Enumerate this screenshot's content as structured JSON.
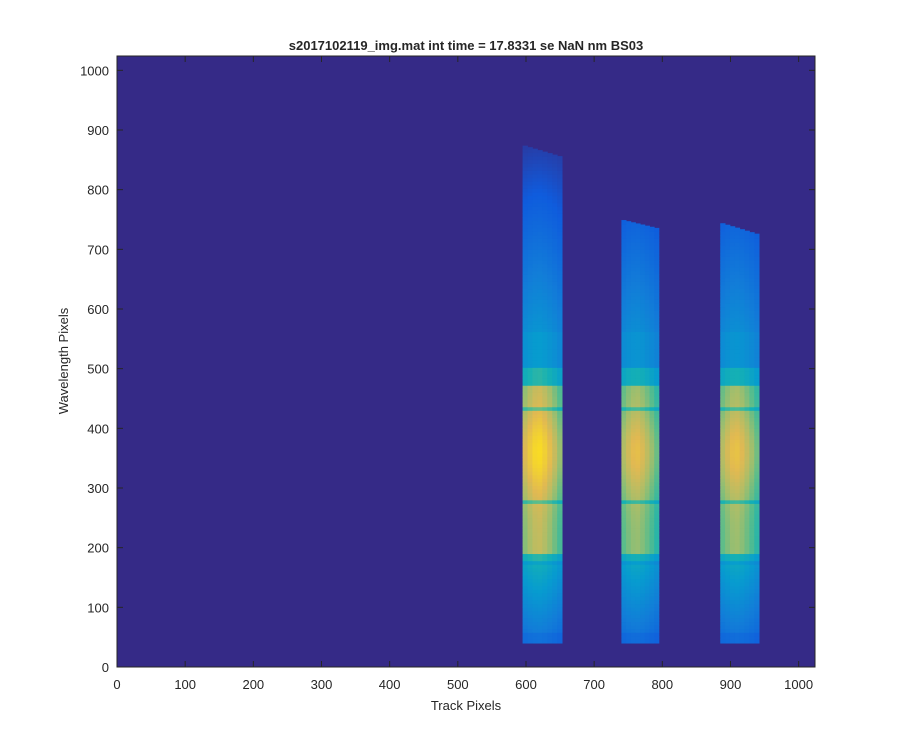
{
  "chart_data": {
    "type": "heatmap",
    "title": "s2017102119_img.mat int time = 17.8331 se  NaN nm BS03",
    "xlabel": "Track Pixels",
    "ylabel": "Wavelength Pixels",
    "xlim": [
      0,
      1024
    ],
    "ylim": [
      0,
      1024
    ],
    "x_ticks": [
      0,
      100,
      200,
      300,
      400,
      500,
      600,
      700,
      800,
      900,
      1000
    ],
    "y_ticks": [
      0,
      100,
      200,
      300,
      400,
      500,
      600,
      700,
      800,
      900,
      1000
    ],
    "colormap": "parula",
    "background_color": "#352A87",
    "grid": false,
    "tracks": [
      {
        "x_start": 595,
        "x_end": 653,
        "y_bottom": 40,
        "y_top_left": 875,
        "y_top_right": 855,
        "peak": 1.0
      },
      {
        "x_start": 740,
        "x_end": 795,
        "y_bottom": 40,
        "y_top_left": 750,
        "y_top_right": 735,
        "peak": 0.92
      },
      {
        "x_start": 885,
        "x_end": 942,
        "y_bottom": 40,
        "y_top_left": 745,
        "y_top_right": 725,
        "peak": 0.93
      }
    ]
  }
}
